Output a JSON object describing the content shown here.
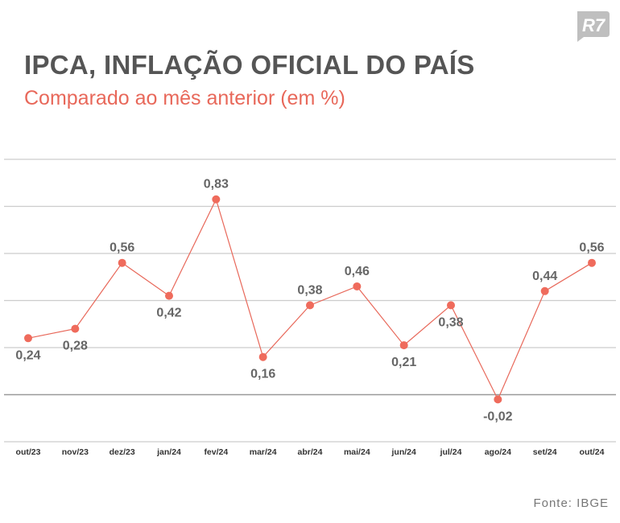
{
  "header": {
    "logo_text": "R7",
    "title": "IPCA, INFLAÇÃO OFICIAL DO PAÍS",
    "subtitle": "Comparado ao mês anterior (em %)"
  },
  "footer": {
    "source": "Fonte: IBGE"
  },
  "colors": {
    "line": "#e8685a",
    "marker": "#ef6b5c",
    "label": "#666666",
    "grid": "#cccccc",
    "zero_line": "#999999",
    "title": "#555555",
    "subtitle": "#e8685a",
    "logo": "#bfbfbf"
  },
  "chart_data": {
    "type": "line",
    "title": "IPCA, INFLAÇÃO OFICIAL DO PAÍS",
    "subtitle": "Comparado ao mês anterior (em %)",
    "xlabel": "",
    "ylabel": "",
    "categories": [
      "out/23",
      "nov/23",
      "dez/23",
      "jan/24",
      "fev/24",
      "mar/24",
      "abr/24",
      "mai/24",
      "jun/24",
      "jul/24",
      "ago/24",
      "set/24",
      "out/24"
    ],
    "series": [
      {
        "values": [
          0.24,
          0.28,
          0.56,
          0.42,
          0.83,
          0.16,
          0.38,
          0.46,
          0.21,
          0.38,
          -0.02,
          0.44,
          0.56
        ],
        "labels": [
          "0,24",
          "0,28",
          "0,56",
          "0,42",
          "0,83",
          "0,16",
          "0,38",
          "0,46",
          "0,21",
          "0,38",
          "-0,02",
          "0,44",
          "0,56"
        ],
        "label_position": [
          "below",
          "below",
          "above",
          "below",
          "above",
          "below",
          "above",
          "above",
          "below",
          "below",
          "below",
          "above",
          "above"
        ]
      }
    ],
    "ylim": [
      -0.2,
      1.0
    ],
    "gridlines": [
      0.2,
      0.4,
      0.6,
      0.8,
      1.0
    ],
    "grid": true,
    "legend": "none"
  }
}
